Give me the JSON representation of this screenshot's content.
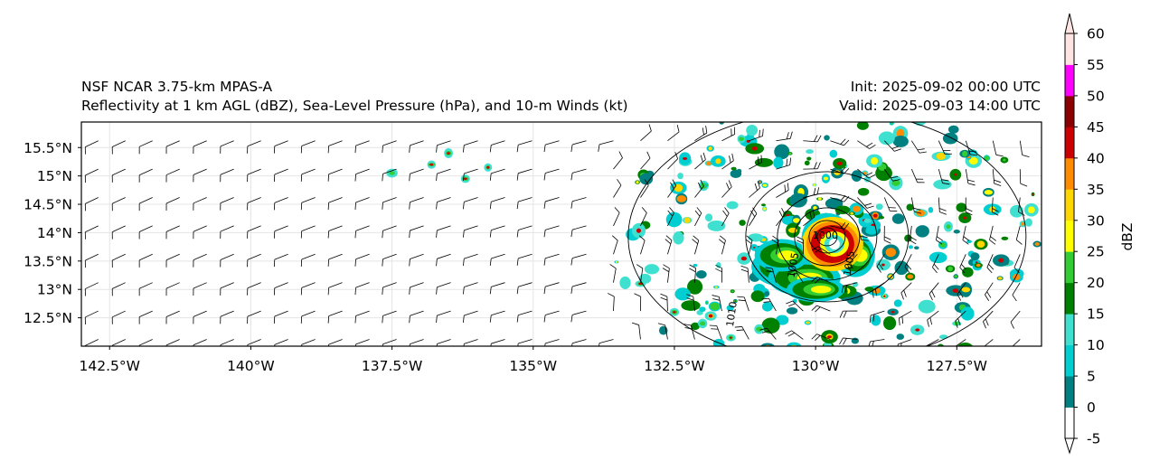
{
  "header": {
    "model_name": "NSF NCAR 3.75-km MPAS-A",
    "fields": "Reflectivity at 1 km AGL (dBZ), Sea-Level Pressure (hPa), and 10-m Winds (kt)",
    "init": "Init: 2025-09-02 00:00 UTC",
    "valid": "Valid: 2025-09-03 14:00 UTC"
  },
  "map": {
    "lon_range": [
      -143.0,
      -126.0
    ],
    "lat_range": [
      12.0,
      15.95
    ],
    "lon_ticks": [
      {
        "value": -142.5,
        "label": "142.5°W"
      },
      {
        "value": -140.0,
        "label": "140°W"
      },
      {
        "value": -137.5,
        "label": "137.5°W"
      },
      {
        "value": -135.0,
        "label": "135°W"
      },
      {
        "value": -132.5,
        "label": "132.5°W"
      },
      {
        "value": -130.0,
        "label": "130°W"
      },
      {
        "value": -127.5,
        "label": "127.5°W"
      }
    ],
    "lat_ticks": [
      {
        "value": 15.5,
        "label": "15.5°N"
      },
      {
        "value": 15.0,
        "label": "15°N"
      },
      {
        "value": 14.5,
        "label": "14.5°N"
      },
      {
        "value": 14.0,
        "label": "14°N"
      },
      {
        "value": 13.5,
        "label": "13.5°N"
      },
      {
        "value": 13.0,
        "label": "13°N"
      },
      {
        "value": 12.5,
        "label": "12.5°N"
      }
    ],
    "storm_center": {
      "lon": -129.7,
      "lat": 13.8
    },
    "isobar_labels": [
      "1010",
      "1005",
      "1005",
      "1000"
    ]
  },
  "colorbar": {
    "label": "dBZ",
    "ticks": [
      "-5",
      "0",
      "5",
      "10",
      "15",
      "20",
      "25",
      "30",
      "35",
      "40",
      "45",
      "50",
      "55",
      "60"
    ],
    "colors": [
      "#ffffff",
      "#008080",
      "#00ced1",
      "#40e0d0",
      "#008000",
      "#32cd32",
      "#ffff00",
      "#ffd700",
      "#ff8c00",
      "#cc0000",
      "#8b0000",
      "#ff00ff",
      "#ffe4e1"
    ]
  }
}
